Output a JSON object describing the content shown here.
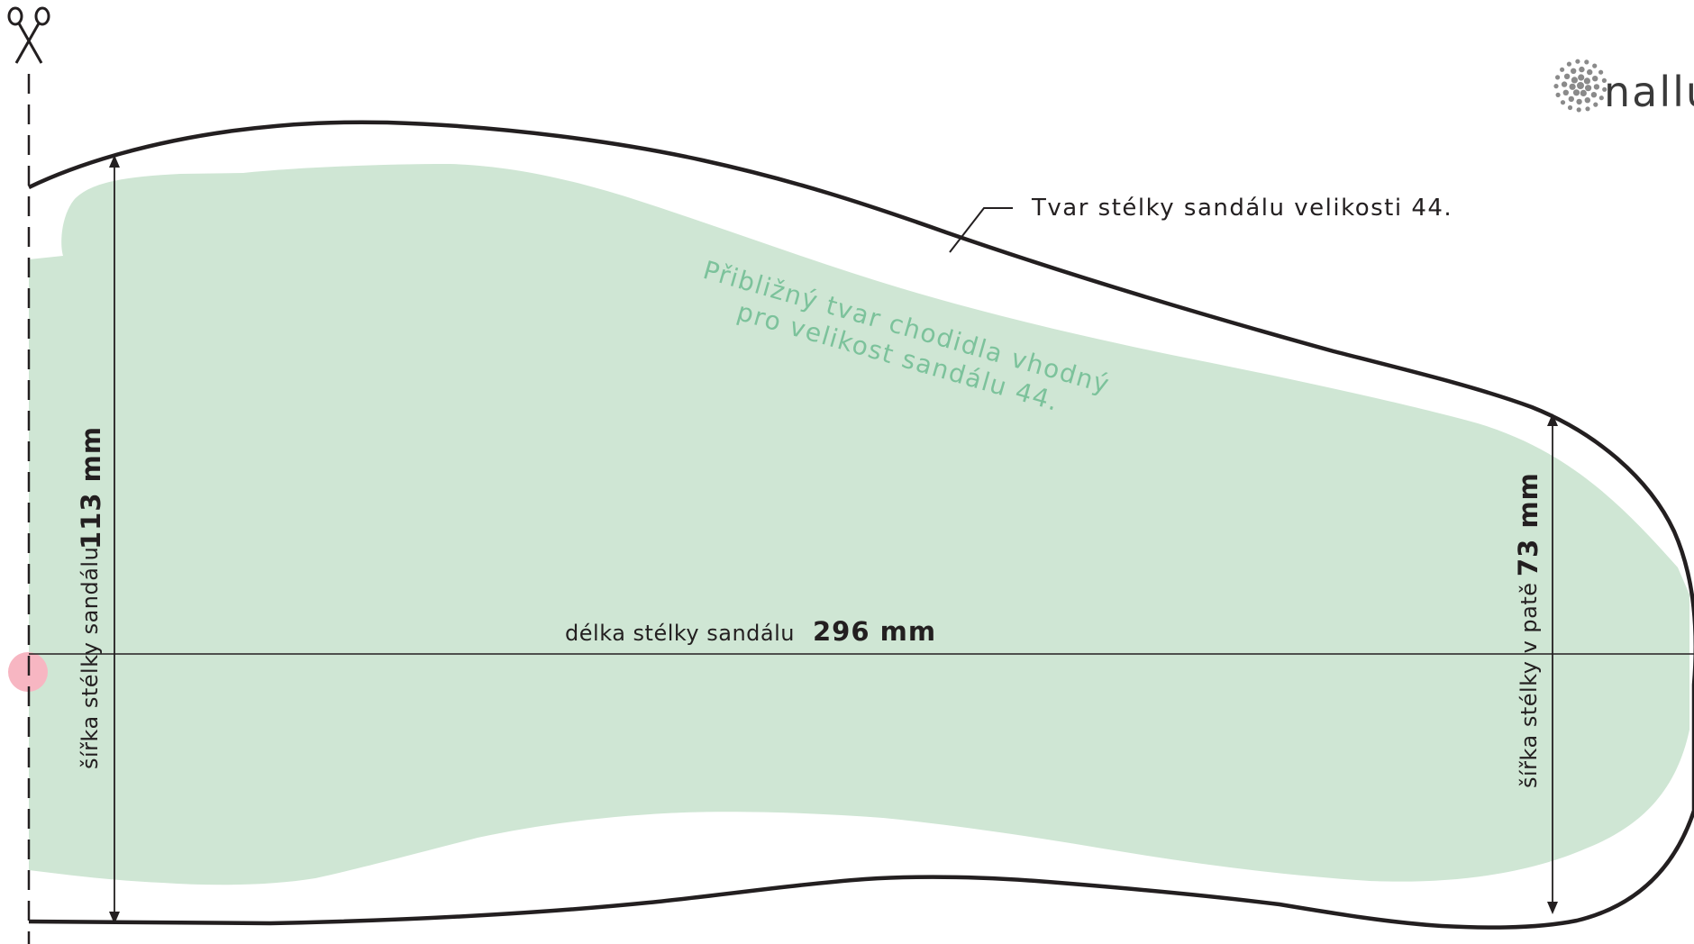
{
  "logo": {
    "text": "nallu"
  },
  "outline_label": "Tvar stélky sandálu velikosti 44.",
  "foot_label": {
    "line1": "Přibližný tvar chodidla vhodný",
    "line2": "pro velikost sandálu 44."
  },
  "length": {
    "label": "délka stélky sandálu",
    "value": "296 mm"
  },
  "width": {
    "label": "šířka stélky sandálu",
    "value": "113 mm"
  },
  "heel_width": {
    "label": "šířka stélky v patě",
    "value": "73 mm"
  },
  "icons": {
    "scissors": "scissors-icon",
    "logo_mark": "dotted-circle-logo-icon"
  },
  "colors": {
    "foot_fill": "#cfe6d4",
    "foot_text": "#7cc29b",
    "outline": "#231f20",
    "marker": "#f7b6c2"
  }
}
